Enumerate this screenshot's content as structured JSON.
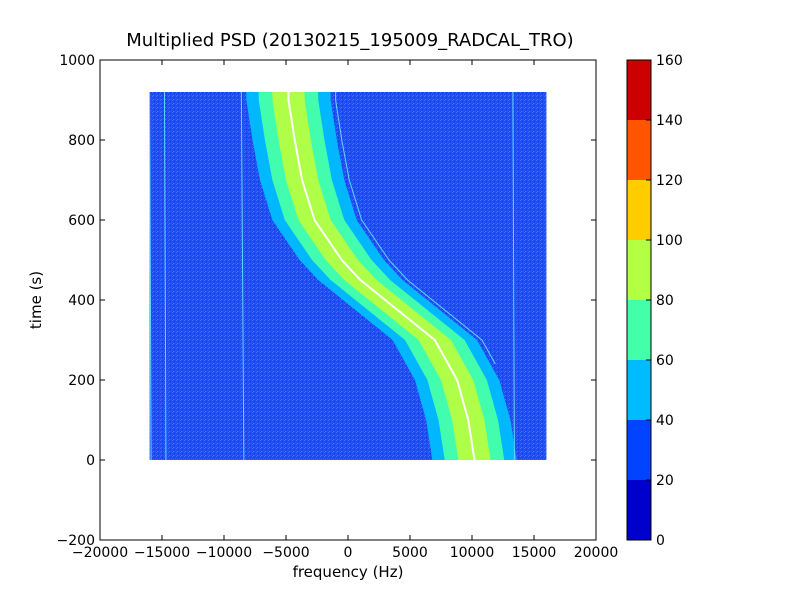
{
  "chart_data": {
    "type": "heatmap",
    "title": "Multiplied PSD (20130215_195009_RADCAL_TRO)",
    "xlabel": "frequency (Hz)",
    "ylabel": "time (s)",
    "xlim": [
      -20000,
      20000
    ],
    "ylim": [
      -200,
      1000
    ],
    "x_ticks": [
      -20000,
      -15000,
      -10000,
      -5000,
      0,
      5000,
      10000,
      15000,
      20000
    ],
    "x_tick_labels": [
      "−20000",
      "−15000",
      "−10000",
      "−5000",
      "0",
      "5000",
      "10000",
      "15000",
      "20000"
    ],
    "y_ticks": [
      -200,
      0,
      200,
      400,
      600,
      800,
      1000
    ],
    "y_tick_labels": [
      "−200",
      "0",
      "200",
      "400",
      "600",
      "800",
      "1000"
    ],
    "data_extent": {
      "x": [
        -16000,
        16000
      ],
      "y": [
        0,
        920
      ]
    },
    "background_level": 25,
    "signal_track": {
      "description": "S-shaped Doppler curve; center frequency vs time",
      "time": [
        0,
        100,
        200,
        300,
        400,
        450,
        500,
        600,
        700,
        800,
        900
      ],
      "frequency": [
        10200,
        9700,
        8800,
        7000,
        3000,
        1000,
        -500,
        -2700,
        -3700,
        -4300,
        -4800
      ],
      "peak_level": 85
    },
    "vertical_lines_hz": [
      -16000,
      -14800,
      -8600,
      13300
    ],
    "colorbar": {
      "min": 0,
      "max": 160,
      "ticks": [
        0,
        20,
        40,
        60,
        80,
        100,
        120,
        140,
        160
      ],
      "bins": [
        {
          "from": 0,
          "to": 20,
          "color": "#0000cc"
        },
        {
          "from": 20,
          "to": 40,
          "color": "#0044ff"
        },
        {
          "from": 40,
          "to": 60,
          "color": "#00bbff"
        },
        {
          "from": 60,
          "to": 80,
          "color": "#44ffaa"
        },
        {
          "from": 80,
          "to": 100,
          "color": "#b3ff44"
        },
        {
          "from": 100,
          "to": 120,
          "color": "#ffcc00"
        },
        {
          "from": 120,
          "to": 140,
          "color": "#ff5500"
        },
        {
          "from": 140,
          "to": 160,
          "color": "#cc0000"
        }
      ]
    },
    "grid": false
  }
}
